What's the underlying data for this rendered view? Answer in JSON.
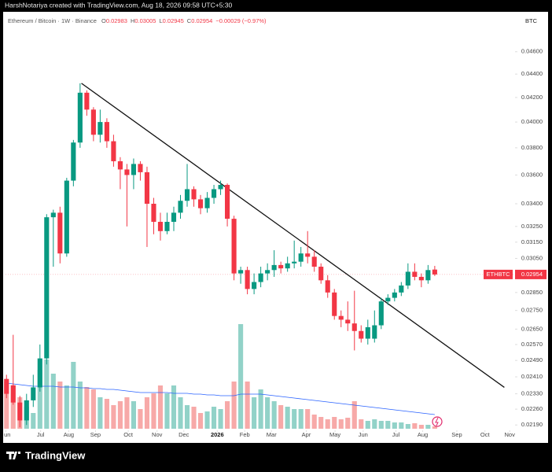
{
  "watermark": "HarshNotariya created with TradingView.com, Aug 18, 2026 09:58 UTC+5:30",
  "footer_brand": "TradingView",
  "chart_data": {
    "type": "candlestick",
    "symbol": "Ethereum / Bitcoin · 1W · Binance",
    "ohlc_labels": [
      "O",
      "H",
      "L",
      "C"
    ],
    "change": "−0.00029 (−0.97%)",
    "currency": "BTC",
    "ticker": "ETHBTC",
    "log_scale": true,
    "up_color": "#089981",
    "down_color": "#f23645",
    "volume_up_color": "#92d2c8",
    "volume_down_color": "#f7a9a8",
    "ma_color": "#2962ff",
    "trend_color": "#111111",
    "ylim": [
      0.0212,
      0.0498
    ],
    "xlim": [
      -0.5,
      76
    ],
    "yticks": [
      {
        "value": 0.046,
        "label": "0.04600"
      },
      {
        "value": 0.044,
        "label": "0.04400"
      },
      {
        "value": 0.042,
        "label": "0.04200"
      },
      {
        "value": 0.04,
        "label": "0.04000"
      },
      {
        "value": 0.038,
        "label": "0.03800"
      },
      {
        "value": 0.036,
        "label": "0.03600"
      },
      {
        "value": 0.034,
        "label": "0.03400"
      },
      {
        "value": 0.0325,
        "label": "0.03250"
      },
      {
        "value": 0.0315,
        "label": "0.03150"
      },
      {
        "value": 0.0305,
        "label": "0.03050"
      },
      {
        "value": 0.0285,
        "label": "0.02850"
      },
      {
        "value": 0.0275,
        "label": "0.02750"
      },
      {
        "value": 0.0265,
        "label": "0.02650"
      },
      {
        "value": 0.0257,
        "label": "0.02570"
      },
      {
        "value": 0.0249,
        "label": "0.02490"
      },
      {
        "value": 0.0241,
        "label": "0.02410"
      },
      {
        "value": 0.0233,
        "label": "0.02330"
      },
      {
        "value": 0.0226,
        "label": "0.02260"
      },
      {
        "value": 0.0219,
        "label": "0.02190"
      }
    ],
    "xticks": [
      {
        "value": -0.1,
        "label": "Jun"
      },
      {
        "value": 5.1,
        "label": "Jul"
      },
      {
        "value": 9.3,
        "label": "Aug"
      },
      {
        "value": 13.3,
        "label": "Sep"
      },
      {
        "value": 18.2,
        "label": "Oct"
      },
      {
        "value": 22.5,
        "label": "Nov"
      },
      {
        "value": 26.5,
        "label": "Dec"
      },
      {
        "value": 31.5,
        "label": "2026"
      },
      {
        "value": 35.6,
        "label": "Feb"
      },
      {
        "value": 39.6,
        "label": "Mar"
      },
      {
        "value": 44.8,
        "label": "Apr"
      },
      {
        "value": 49.1,
        "label": "May"
      },
      {
        "value": 53.3,
        "label": "Jun"
      },
      {
        "value": 58.2,
        "label": "Jul"
      },
      {
        "value": 62.2,
        "label": "Aug"
      },
      {
        "value": 67.3,
        "label": "Sep"
      },
      {
        "value": 71.5,
        "label": "Oct"
      },
      {
        "value": 75.2,
        "label": "Nov"
      }
    ],
    "open": [
      0.024,
      0.0237,
      0.0229,
      0.0221,
      0.023,
      0.0236,
      0.025,
      0.0331,
      0.0334,
      0.0308,
      0.0356,
      0.0384,
      0.0424,
      0.041,
      0.039,
      0.04,
      0.0385,
      0.037,
      0.0364,
      0.036,
      0.0368,
      0.0362,
      0.034,
      0.0328,
      0.0322,
      0.0328,
      0.0334,
      0.0342,
      0.035,
      0.0343,
      0.0337,
      0.0344,
      0.035,
      0.0353,
      0.033,
      0.0296,
      0.0298,
      0.0287,
      0.0291,
      0.0296,
      0.0298,
      0.0301,
      0.0299,
      0.0302,
      0.0303,
      0.0308,
      0.0306,
      0.03,
      0.0292,
      0.0285,
      0.0272,
      0.027,
      0.0268,
      0.0264,
      0.026,
      0.026,
      0.0267,
      0.028,
      0.0282,
      0.0285,
      0.0289,
      0.0297,
      0.0294,
      0.0292,
      0.02983
    ],
    "high": [
      0.0242,
      0.0262,
      0.0232,
      0.0233,
      0.0242,
      0.0257,
      0.0333,
      0.0336,
      0.0338,
      0.0358,
      0.0386,
      0.0432,
      0.0426,
      0.0412,
      0.041,
      0.0403,
      0.039,
      0.0373,
      0.0368,
      0.0372,
      0.037,
      0.0366,
      0.0344,
      0.0334,
      0.0334,
      0.0338,
      0.0346,
      0.0368,
      0.0352,
      0.0346,
      0.0348,
      0.0353,
      0.0356,
      0.0354,
      0.0332,
      0.03,
      0.03,
      0.0296,
      0.03,
      0.0302,
      0.031,
      0.0303,
      0.0306,
      0.0316,
      0.0312,
      0.0322,
      0.031,
      0.0302,
      0.0295,
      0.0287,
      0.0275,
      0.028,
      0.0286,
      0.0267,
      0.027,
      0.0275,
      0.0282,
      0.0284,
      0.0287,
      0.0291,
      0.0302,
      0.0302,
      0.0296,
      0.0301,
      0.03005
    ],
    "low": [
      0.0231,
      0.0228,
      0.0218,
      0.0219,
      0.0227,
      0.0234,
      0.0247,
      0.03,
      0.0302,
      0.0306,
      0.0352,
      0.038,
      0.0405,
      0.0385,
      0.0384,
      0.038,
      0.0366,
      0.035,
      0.0325,
      0.035,
      0.0356,
      0.0312,
      0.032,
      0.0316,
      0.032,
      0.0322,
      0.033,
      0.0338,
      0.0338,
      0.0333,
      0.0334,
      0.034,
      0.0346,
      0.0325,
      0.0292,
      0.029,
      0.0284,
      0.0284,
      0.0288,
      0.0292,
      0.0294,
      0.0296,
      0.0297,
      0.0299,
      0.03,
      0.0302,
      0.0297,
      0.029,
      0.0282,
      0.027,
      0.0266,
      0.0264,
      0.0254,
      0.0258,
      0.0257,
      0.0258,
      0.0265,
      0.0278,
      0.028,
      0.0283,
      0.0287,
      0.0292,
      0.0288,
      0.029,
      0.02945
    ],
    "close": [
      0.0233,
      0.0229,
      0.0221,
      0.023,
      0.0236,
      0.025,
      0.0331,
      0.0334,
      0.0308,
      0.0356,
      0.0384,
      0.0424,
      0.041,
      0.039,
      0.04,
      0.0385,
      0.037,
      0.0364,
      0.036,
      0.0368,
      0.0362,
      0.034,
      0.0328,
      0.0322,
      0.0328,
      0.0334,
      0.0342,
      0.035,
      0.0343,
      0.0337,
      0.0344,
      0.035,
      0.0353,
      0.033,
      0.0296,
      0.0298,
      0.0287,
      0.0291,
      0.0296,
      0.0298,
      0.0301,
      0.0299,
      0.0302,
      0.0303,
      0.0308,
      0.0306,
      0.03,
      0.0292,
      0.0285,
      0.0272,
      0.027,
      0.0268,
      0.0264,
      0.026,
      0.0266,
      0.0267,
      0.028,
      0.0282,
      0.0285,
      0.0289,
      0.0297,
      0.0294,
      0.0292,
      0.0298,
      0.02954
    ],
    "volume": [
      60,
      55,
      40,
      28,
      20,
      75,
      88,
      70,
      60,
      55,
      85,
      60,
      53,
      50,
      40,
      38,
      30,
      35,
      40,
      35,
      25,
      40,
      45,
      55,
      45,
      55,
      40,
      30,
      28,
      20,
      22,
      28,
      25,
      35,
      60,
      133,
      60,
      40,
      50,
      40,
      35,
      30,
      28,
      25,
      25,
      25,
      18,
      15,
      12,
      15,
      12,
      14,
      35,
      12,
      10,
      12,
      10,
      10,
      8,
      8,
      6,
      7,
      5,
      5,
      3
    ],
    "volume_ma": [
      58,
      57,
      56,
      55,
      54,
      54,
      54,
      54,
      53,
      53,
      53,
      52,
      52,
      51,
      51,
      50,
      50,
      49,
      48,
      47,
      46,
      46,
      46,
      46,
      46,
      45,
      45,
      45,
      44,
      44,
      43,
      43,
      42,
      42,
      42,
      44,
      44,
      44,
      44,
      43,
      42,
      41,
      40,
      39,
      38,
      37,
      36,
      35,
      34,
      33,
      32,
      31,
      30,
      29,
      28,
      27,
      26,
      25,
      24,
      23,
      22,
      21,
      20,
      19,
      18
    ],
    "trendline": {
      "x": [
        11.2,
        74.4
      ],
      "y": [
        0.0432,
        0.0236
      ]
    }
  }
}
